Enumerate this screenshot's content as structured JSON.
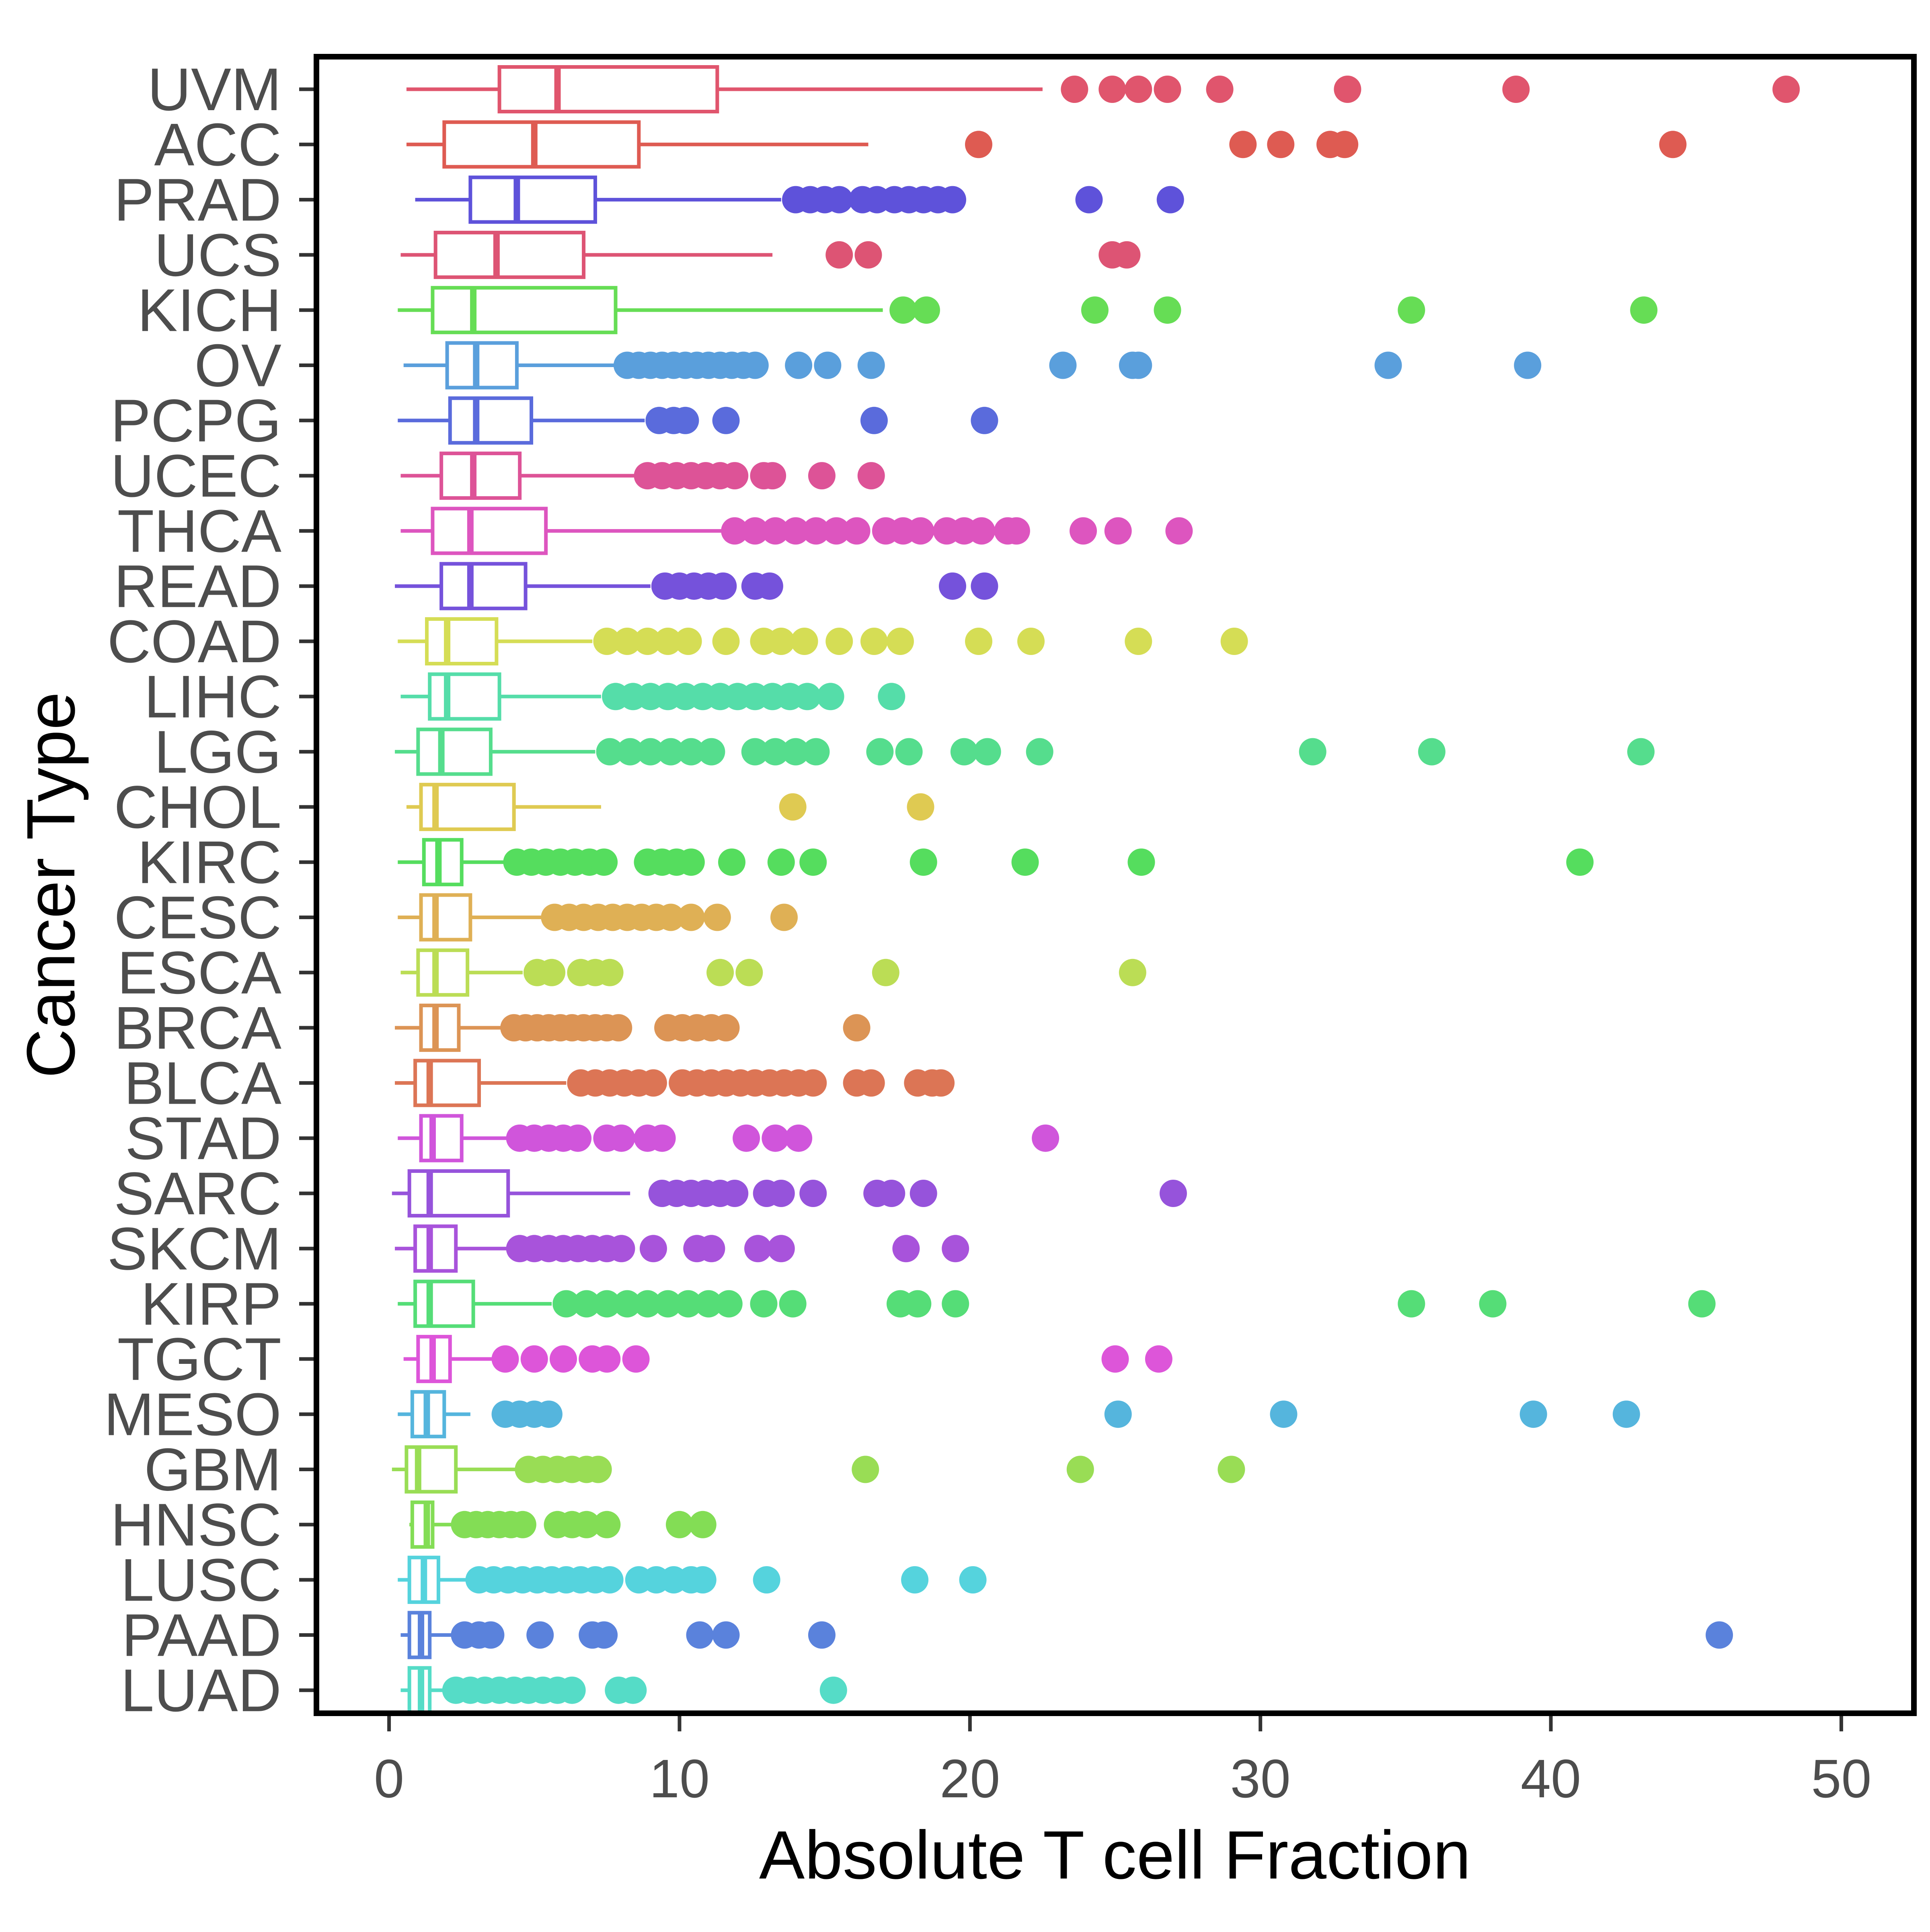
{
  "chart_data": {
    "type": "boxplot",
    "orientation": "horizontal",
    "xlabel": "Absolute T cell Fraction",
    "ylabel": "Cancer Type",
    "xlim": [
      -2.5,
      52.5
    ],
    "xticks": [
      0,
      10,
      20,
      30,
      40,
      50
    ],
    "grid": false,
    "legend": "none",
    "series": [
      {
        "category": "UVM",
        "color": "#e0556d",
        "whisker_low": 0.6,
        "q1": 3.8,
        "median": 5.8,
        "q3": 11.3,
        "whisker_high": 22.5,
        "outliers": [
          23.6,
          24.9,
          25.8,
          26.8,
          28.6,
          33.0,
          38.8,
          48.1
        ]
      },
      {
        "category": "ACC",
        "color": "#de5b52",
        "whisker_low": 0.6,
        "q1": 1.9,
        "median": 5.0,
        "q3": 8.6,
        "whisker_high": 16.5,
        "outliers": [
          20.3,
          29.4,
          30.7,
          32.4,
          32.9,
          44.2
        ]
      },
      {
        "category": "PRAD",
        "color": "#5e52da",
        "whisker_low": 0.9,
        "q1": 2.8,
        "median": 4.4,
        "q3": 7.1,
        "whisker_high": 13.5,
        "outliers": [
          14.0,
          14.5,
          15.0,
          15.5,
          16.3,
          16.8,
          17.4,
          17.9,
          18.4,
          18.9,
          19.4,
          24.1,
          26.9
        ]
      },
      {
        "category": "UCS",
        "color": "#dd5474",
        "whisker_low": 0.4,
        "q1": 1.6,
        "median": 3.7,
        "q3": 6.7,
        "whisker_high": 13.2,
        "outliers": [
          15.5,
          16.5,
          24.9,
          25.4
        ]
      },
      {
        "category": "KICH",
        "color": "#66dd55",
        "whisker_low": 0.3,
        "q1": 1.5,
        "median": 2.9,
        "q3": 7.8,
        "whisker_high": 17.0,
        "outliers": [
          17.7,
          18.5,
          24.3,
          26.8,
          35.2,
          43.2
        ]
      },
      {
        "category": "OV",
        "color": "#5a9fdc",
        "whisker_low": 0.5,
        "q1": 2.0,
        "median": 3.0,
        "q3": 4.4,
        "whisker_high": 7.8,
        "outliers": [
          8.2,
          8.6,
          9.0,
          9.4,
          9.8,
          10.2,
          10.6,
          11.0,
          11.4,
          11.8,
          12.2,
          12.6,
          14.1,
          15.1,
          16.6,
          23.2,
          25.6,
          25.8,
          34.4,
          39.2
        ]
      },
      {
        "category": "PCPG",
        "color": "#5a6bdc",
        "whisker_low": 0.3,
        "q1": 2.1,
        "median": 3.0,
        "q3": 4.9,
        "whisker_high": 8.8,
        "outliers": [
          9.3,
          9.8,
          10.2,
          11.6,
          16.7,
          20.5
        ]
      },
      {
        "category": "UCEC",
        "color": "#dd5397",
        "whisker_low": 0.4,
        "q1": 1.8,
        "median": 2.9,
        "q3": 4.5,
        "whisker_high": 8.5,
        "outliers": [
          8.9,
          9.4,
          9.9,
          10.4,
          10.9,
          11.4,
          11.9,
          12.9,
          13.2,
          14.9,
          16.6
        ]
      },
      {
        "category": "THCA",
        "color": "#dd55bf",
        "whisker_low": 0.4,
        "q1": 1.5,
        "median": 2.8,
        "q3": 5.4,
        "whisker_high": 11.5,
        "outliers": [
          11.9,
          12.6,
          13.3,
          14.0,
          14.7,
          15.4,
          16.1,
          17.1,
          17.7,
          18.3,
          19.2,
          19.8,
          20.4,
          21.3,
          21.6,
          23.9,
          25.1,
          27.2
        ]
      },
      {
        "category": "READ",
        "color": "#7552db",
        "whisker_low": 0.2,
        "q1": 1.8,
        "median": 2.8,
        "q3": 4.7,
        "whisker_high": 9.0,
        "outliers": [
          9.5,
          10.0,
          10.5,
          11.0,
          11.5,
          12.6,
          13.1,
          19.4,
          20.5
        ]
      },
      {
        "category": "COAD",
        "color": "#d5dd55",
        "whisker_low": 0.3,
        "q1": 1.3,
        "median": 2.0,
        "q3": 3.7,
        "whisker_high": 7.0,
        "outliers": [
          7.5,
          8.2,
          8.9,
          9.6,
          10.3,
          11.6,
          12.9,
          13.5,
          14.3,
          15.5,
          16.7,
          17.6,
          20.3,
          22.1,
          25.8,
          29.1
        ]
      },
      {
        "category": "LIHC",
        "color": "#55dda9",
        "whisker_low": 0.4,
        "q1": 1.4,
        "median": 2.0,
        "q3": 3.8,
        "whisker_high": 7.3,
        "outliers": [
          7.8,
          8.4,
          9.0,
          9.6,
          10.2,
          10.8,
          11.4,
          12.0,
          12.6,
          13.2,
          13.8,
          14.4,
          15.2,
          17.3
        ]
      },
      {
        "category": "LGG",
        "color": "#55dd8d",
        "whisker_low": 0.2,
        "q1": 1.0,
        "median": 1.8,
        "q3": 3.5,
        "whisker_high": 7.1,
        "outliers": [
          7.6,
          8.3,
          9.0,
          9.7,
          10.4,
          11.1,
          12.6,
          13.3,
          14.0,
          14.7,
          16.9,
          17.9,
          19.8,
          20.6,
          22.4,
          31.8,
          35.9,
          43.1
        ]
      },
      {
        "category": "CHOL",
        "color": "#dfca52",
        "whisker_low": 0.6,
        "q1": 1.1,
        "median": 1.6,
        "q3": 4.3,
        "whisker_high": 7.3,
        "outliers": [
          13.9,
          18.3
        ]
      },
      {
        "category": "KIRC",
        "color": "#55dd5e",
        "whisker_low": 0.3,
        "q1": 1.2,
        "median": 1.7,
        "q3": 2.5,
        "whisker_high": 4.0,
        "outliers": [
          4.4,
          4.9,
          5.4,
          5.9,
          6.4,
          6.9,
          7.4,
          8.9,
          9.4,
          9.9,
          10.4,
          11.8,
          13.5,
          14.6,
          18.4,
          21.9,
          25.9,
          41.0
        ]
      },
      {
        "category": "CESC",
        "color": "#dfb055",
        "whisker_low": 0.3,
        "q1": 1.1,
        "median": 1.6,
        "q3": 2.8,
        "whisker_high": 5.3,
        "outliers": [
          5.7,
          6.2,
          6.7,
          7.2,
          7.7,
          8.2,
          8.7,
          9.2,
          9.7,
          10.4,
          11.3,
          13.6
        ]
      },
      {
        "category": "ESCA",
        "color": "#bbdd55",
        "whisker_low": 0.4,
        "q1": 1.0,
        "median": 1.6,
        "q3": 2.7,
        "whisker_high": 4.6,
        "outliers": [
          5.1,
          5.6,
          6.6,
          7.1,
          7.6,
          11.4,
          12.4,
          17.1,
          25.6
        ]
      },
      {
        "category": "BRCA",
        "color": "#dc9455",
        "whisker_low": 0.2,
        "q1": 1.1,
        "median": 1.6,
        "q3": 2.4,
        "whisker_high": 3.9,
        "outliers": [
          4.3,
          4.7,
          5.1,
          5.5,
          5.9,
          6.3,
          6.7,
          7.1,
          7.5,
          7.9,
          9.6,
          10.1,
          10.6,
          11.1,
          11.6,
          16.1
        ]
      },
      {
        "category": "BLCA",
        "color": "#dc7555",
        "whisker_low": 0.2,
        "q1": 0.9,
        "median": 1.4,
        "q3": 3.1,
        "whisker_high": 6.1,
        "outliers": [
          6.6,
          7.1,
          7.6,
          8.1,
          8.6,
          9.1,
          10.1,
          10.6,
          11.1,
          11.6,
          12.1,
          12.6,
          13.1,
          13.6,
          14.1,
          14.6,
          16.1,
          16.6,
          18.2,
          18.7,
          19.0
        ]
      },
      {
        "category": "STAD",
        "color": "#d055db",
        "whisker_low": 0.3,
        "q1": 1.1,
        "median": 1.5,
        "q3": 2.5,
        "whisker_high": 4.1,
        "outliers": [
          4.5,
          5.0,
          5.5,
          6.0,
          6.5,
          7.5,
          8.0,
          8.9,
          9.4,
          12.3,
          13.3,
          14.1,
          22.6
        ]
      },
      {
        "category": "SARC",
        "color": "#9653db",
        "whisker_low": 0.1,
        "q1": 0.7,
        "median": 1.4,
        "q3": 4.1,
        "whisker_high": 8.3,
        "outliers": [
          9.4,
          9.9,
          10.4,
          10.9,
          11.4,
          11.9,
          13.0,
          13.5,
          14.6,
          16.8,
          17.3,
          18.4,
          27.0
        ]
      },
      {
        "category": "SKCM",
        "color": "#a853db",
        "whisker_low": 0.2,
        "q1": 0.9,
        "median": 1.4,
        "q3": 2.3,
        "whisker_high": 4.1,
        "outliers": [
          4.5,
          5.0,
          5.5,
          6.0,
          6.5,
          7.0,
          7.5,
          8.0,
          9.1,
          10.6,
          11.1,
          12.7,
          13.5,
          17.8,
          19.5
        ]
      },
      {
        "category": "KIRP",
        "color": "#55dd77",
        "whisker_low": 0.3,
        "q1": 0.9,
        "median": 1.4,
        "q3": 2.9,
        "whisker_high": 5.6,
        "outliers": [
          6.1,
          6.8,
          7.5,
          8.2,
          8.9,
          9.6,
          10.3,
          11.0,
          11.7,
          12.9,
          13.9,
          17.6,
          18.2,
          19.5,
          35.2,
          38.0,
          45.2
        ]
      },
      {
        "category": "TGCT",
        "color": "#dd55d9",
        "whisker_low": 0.5,
        "q1": 1.0,
        "median": 1.5,
        "q3": 2.1,
        "whisker_high": 3.6,
        "outliers": [
          4.0,
          5.0,
          6.0,
          7.0,
          7.5,
          8.5,
          25.0,
          26.5
        ]
      },
      {
        "category": "MESO",
        "color": "#55b5dd",
        "whisker_low": 0.3,
        "q1": 0.8,
        "median": 1.3,
        "q3": 1.9,
        "whisker_high": 2.8,
        "outliers": [
          4.0,
          4.5,
          5.0,
          5.5,
          25.1,
          30.8,
          39.4,
          42.6
        ]
      },
      {
        "category": "GBM",
        "color": "#99dd55",
        "whisker_low": 0.1,
        "q1": 0.6,
        "median": 1.0,
        "q3": 2.3,
        "whisker_high": 4.4,
        "outliers": [
          4.8,
          5.3,
          5.8,
          6.3,
          6.8,
          7.2,
          16.4,
          23.8,
          29.0
        ]
      },
      {
        "category": "HNSC",
        "color": "#83dd55",
        "whisker_low": 0.7,
        "q1": 0.8,
        "median": 1.3,
        "q3": 1.5,
        "whisker_high": 2.3,
        "outliers": [
          2.6,
          3.0,
          3.4,
          3.8,
          4.2,
          4.6,
          5.8,
          6.3,
          6.8,
          7.5,
          10.0,
          10.8
        ]
      },
      {
        "category": "LUSC",
        "color": "#55d3dd",
        "whisker_low": 0.3,
        "q1": 0.7,
        "median": 1.2,
        "q3": 1.7,
        "whisker_high": 2.7,
        "outliers": [
          3.1,
          3.6,
          4.1,
          4.6,
          5.1,
          5.6,
          6.1,
          6.6,
          7.1,
          7.6,
          8.6,
          9.2,
          9.8,
          10.4,
          10.8,
          13.0,
          18.1,
          20.1
        ]
      },
      {
        "category": "PAAD",
        "color": "#5a82dc",
        "whisker_low": 0.4,
        "q1": 0.7,
        "median": 1.1,
        "q3": 1.4,
        "whisker_high": 2.2,
        "outliers": [
          2.6,
          3.1,
          3.5,
          5.2,
          7.0,
          7.4,
          10.7,
          11.6,
          14.9,
          45.8
        ]
      },
      {
        "category": "LUAD",
        "color": "#55dcc7",
        "whisker_low": 0.4,
        "q1": 0.7,
        "median": 1.1,
        "q3": 1.4,
        "whisker_high": 1.9,
        "outliers": [
          2.3,
          2.8,
          3.3,
          3.8,
          4.3,
          4.8,
          5.3,
          5.8,
          6.3,
          7.9,
          8.4,
          15.3
        ]
      }
    ]
  }
}
